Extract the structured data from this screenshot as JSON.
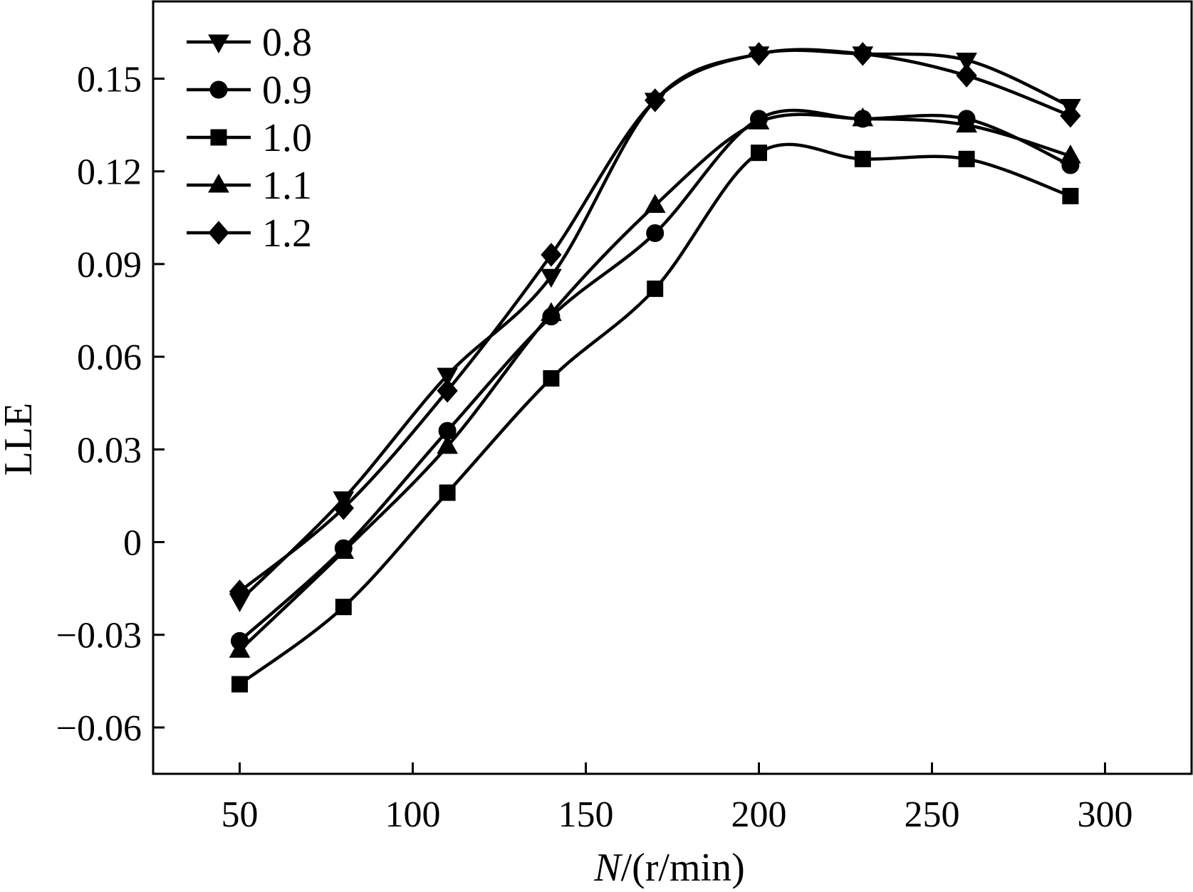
{
  "chart_data": {
    "type": "line",
    "title": "",
    "xlabel_italic": "N",
    "xlabel_rest": "/(r/min)",
    "ylabel": "LLE",
    "x": [
      50,
      80,
      110,
      140,
      170,
      200,
      230,
      260,
      290
    ],
    "xlim": [
      25,
      325
    ],
    "ylim": [
      -0.075,
      0.175
    ],
    "xticks": [
      50,
      100,
      150,
      200,
      250,
      300
    ],
    "xtick_labels": [
      "50",
      "100",
      "150",
      "200",
      "250",
      "300"
    ],
    "yticks": [
      -0.06,
      -0.03,
      0,
      0.03,
      0.06,
      0.09,
      0.12,
      0.15
    ],
    "ytick_labels": [
      "−0.06",
      "−0.03",
      "0",
      "0.03",
      "0.06",
      "0.09",
      "0.12",
      "0.15"
    ],
    "grid": false,
    "legend_position": "top-left",
    "series": [
      {
        "name": "0.8",
        "marker": "triangle-down",
        "values": [
          -0.019,
          0.014,
          0.054,
          0.086,
          0.143,
          0.158,
          0.158,
          0.156,
          0.141
        ]
      },
      {
        "name": "0.9",
        "marker": "circle",
        "values": [
          -0.032,
          -0.002,
          0.036,
          0.073,
          0.1,
          0.137,
          0.137,
          0.137,
          0.122
        ]
      },
      {
        "name": "1.0",
        "marker": "square",
        "values": [
          -0.046,
          -0.021,
          0.016,
          0.053,
          0.082,
          0.126,
          0.124,
          0.124,
          0.112
        ]
      },
      {
        "name": "1.1",
        "marker": "triangle-up",
        "values": [
          -0.035,
          -0.003,
          0.031,
          0.074,
          0.109,
          0.136,
          0.137,
          0.135,
          0.125
        ]
      },
      {
        "name": "1.2",
        "marker": "diamond",
        "values": [
          -0.016,
          0.011,
          0.049,
          0.093,
          0.143,
          0.158,
          0.158,
          0.151,
          0.138
        ]
      }
    ]
  }
}
